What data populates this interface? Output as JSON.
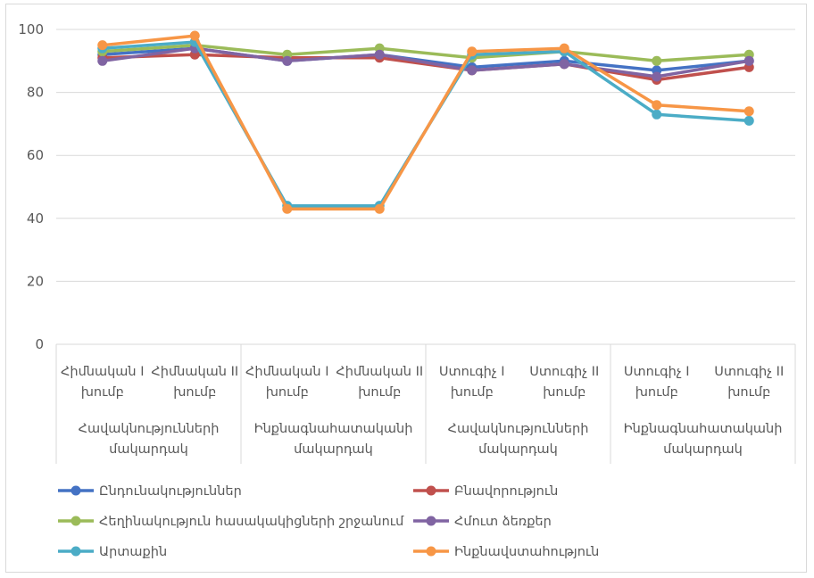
{
  "chart_data": {
    "type": "line",
    "title": "",
    "xlabel": "",
    "ylabel": "",
    "ylim": [
      0,
      100
    ],
    "yticks": [
      0,
      20,
      40,
      60,
      80,
      100
    ],
    "grid": true,
    "legend_position": "bottom",
    "categories": [
      [
        "Հիմնական I",
        "խումբ"
      ],
      [
        "Հիմնական II",
        "խումբ"
      ],
      [
        "Հիմնական I",
        "խումբ"
      ],
      [
        "Հիմնական II",
        "խումբ"
      ],
      [
        "Ստուգիչ I",
        "խումբ"
      ],
      [
        "Ստուգիչ II",
        "խումբ"
      ],
      [
        "Ստուգիչ I",
        "խումբ"
      ],
      [
        "Ստուգիչ II",
        "խումբ"
      ]
    ],
    "groups": [
      {
        "label": [
          "Հավակնությունների",
          "մակարդակ"
        ],
        "span": 2
      },
      {
        "label": [
          "Ինքնագնահատականի",
          "մակարդակ"
        ],
        "span": 2
      },
      {
        "label": [
          "Հավակնությունների",
          "մակարդակ"
        ],
        "span": 2
      },
      {
        "label": [
          "Ինքնագնահատականի",
          "մակարդակ"
        ],
        "span": 2
      }
    ],
    "series": [
      {
        "name": "Ընդունակություններ",
        "color": "#4472C4",
        "values": [
          92,
          94,
          90,
          92,
          88,
          90,
          87,
          90
        ]
      },
      {
        "name": "Բնավորություն",
        "color": "#C0504D",
        "values": [
          91,
          92,
          91,
          91,
          87,
          89,
          84,
          88
        ]
      },
      {
        "name": "Հեղինակություն հասակակիցների շրջանում",
        "color": "#9BBB59",
        "values": [
          93,
          95,
          92,
          94,
          91,
          93,
          90,
          92
        ]
      },
      {
        "name": "Հմուտ ձեռքեր",
        "color": "#8064A2",
        "values": [
          90,
          94,
          90,
          92,
          87,
          89,
          85,
          90
        ]
      },
      {
        "name": "Արտաքին",
        "color": "#4BACC6",
        "values": [
          94,
          96,
          44,
          44,
          92,
          93,
          73,
          71
        ]
      },
      {
        "name": "Ինքնավստահություն",
        "color": "#F79646",
        "values": [
          95,
          98,
          43,
          43,
          93,
          94,
          76,
          74
        ]
      }
    ]
  }
}
